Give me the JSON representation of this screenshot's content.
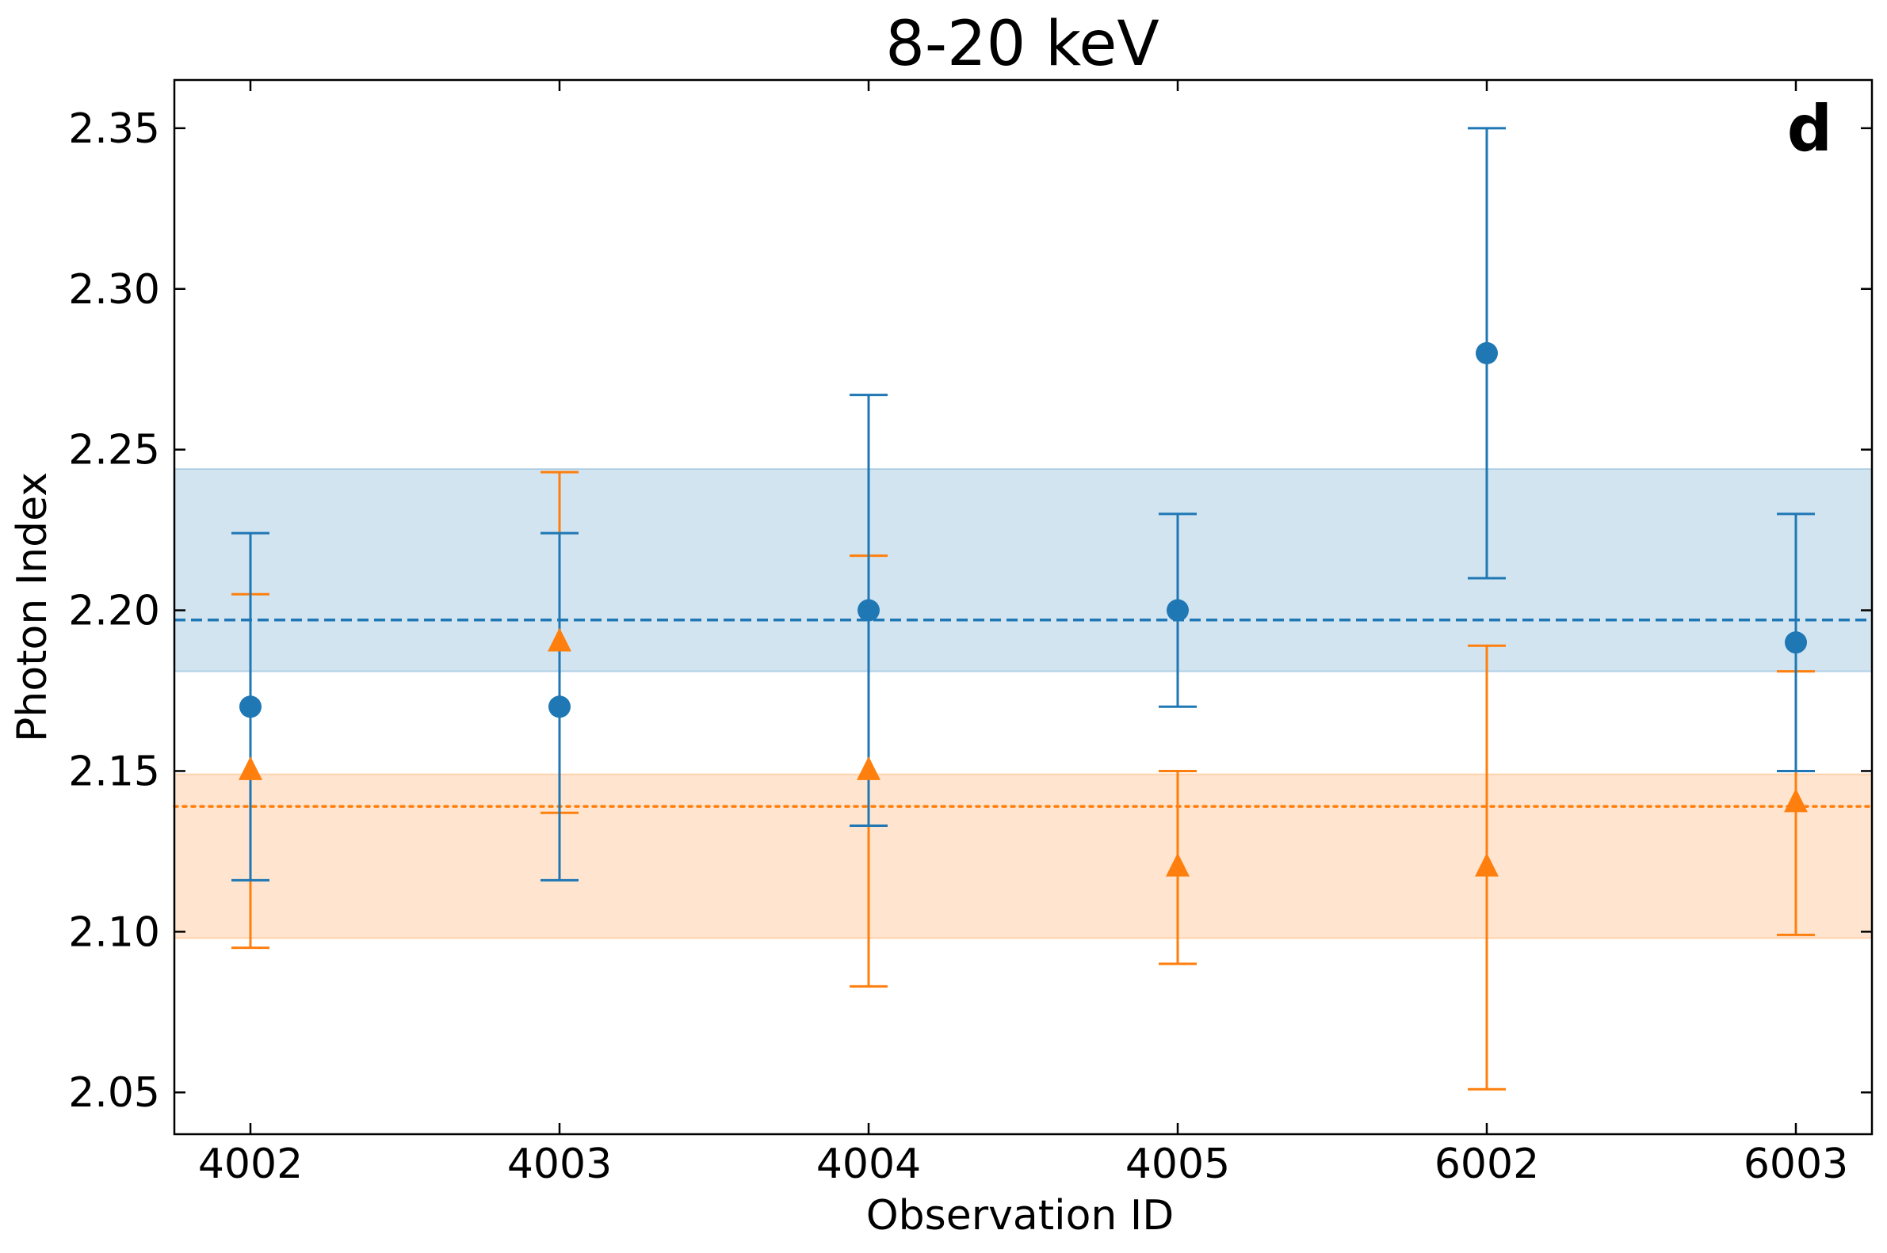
{
  "chart_data": {
    "type": "scatter",
    "title": "8-20 keV",
    "panel_label": "d",
    "xlabel": "Observation ID",
    "ylabel": "Photon Index",
    "categories": [
      "4002",
      "4003",
      "4004",
      "4005",
      "6002",
      "6003"
    ],
    "ylim": [
      2.037,
      2.365
    ],
    "yticks": [
      2.05,
      2.1,
      2.15,
      2.2,
      2.25,
      2.3,
      2.35
    ],
    "ytick_labels": [
      "2.05",
      "2.10",
      "2.15",
      "2.20",
      "2.25",
      "2.30",
      "2.35"
    ],
    "grid": false,
    "series": [
      {
        "marker": "circle",
        "color": "#1f77b4",
        "values": [
          2.17,
          2.17,
          2.2,
          2.2,
          2.28,
          2.19
        ],
        "err_low": [
          2.116,
          2.116,
          2.133,
          2.17,
          2.21,
          2.15
        ],
        "err_high": [
          2.224,
          2.224,
          2.267,
          2.23,
          2.35,
          2.23
        ],
        "mean": 2.197,
        "mean_style": "dashed",
        "band": [
          2.181,
          2.244
        ]
      },
      {
        "marker": "triangle",
        "color": "#ff7f0e",
        "values": [
          2.15,
          2.19,
          2.15,
          2.12,
          2.12,
          2.14
        ],
        "err_low": [
          2.095,
          2.137,
          2.083,
          2.09,
          2.051,
          2.099
        ],
        "err_high": [
          2.205,
          2.243,
          2.217,
          2.15,
          2.189,
          2.181
        ],
        "mean": 2.139,
        "mean_style": "dotted",
        "band": [
          2.098,
          2.149
        ]
      }
    ]
  }
}
